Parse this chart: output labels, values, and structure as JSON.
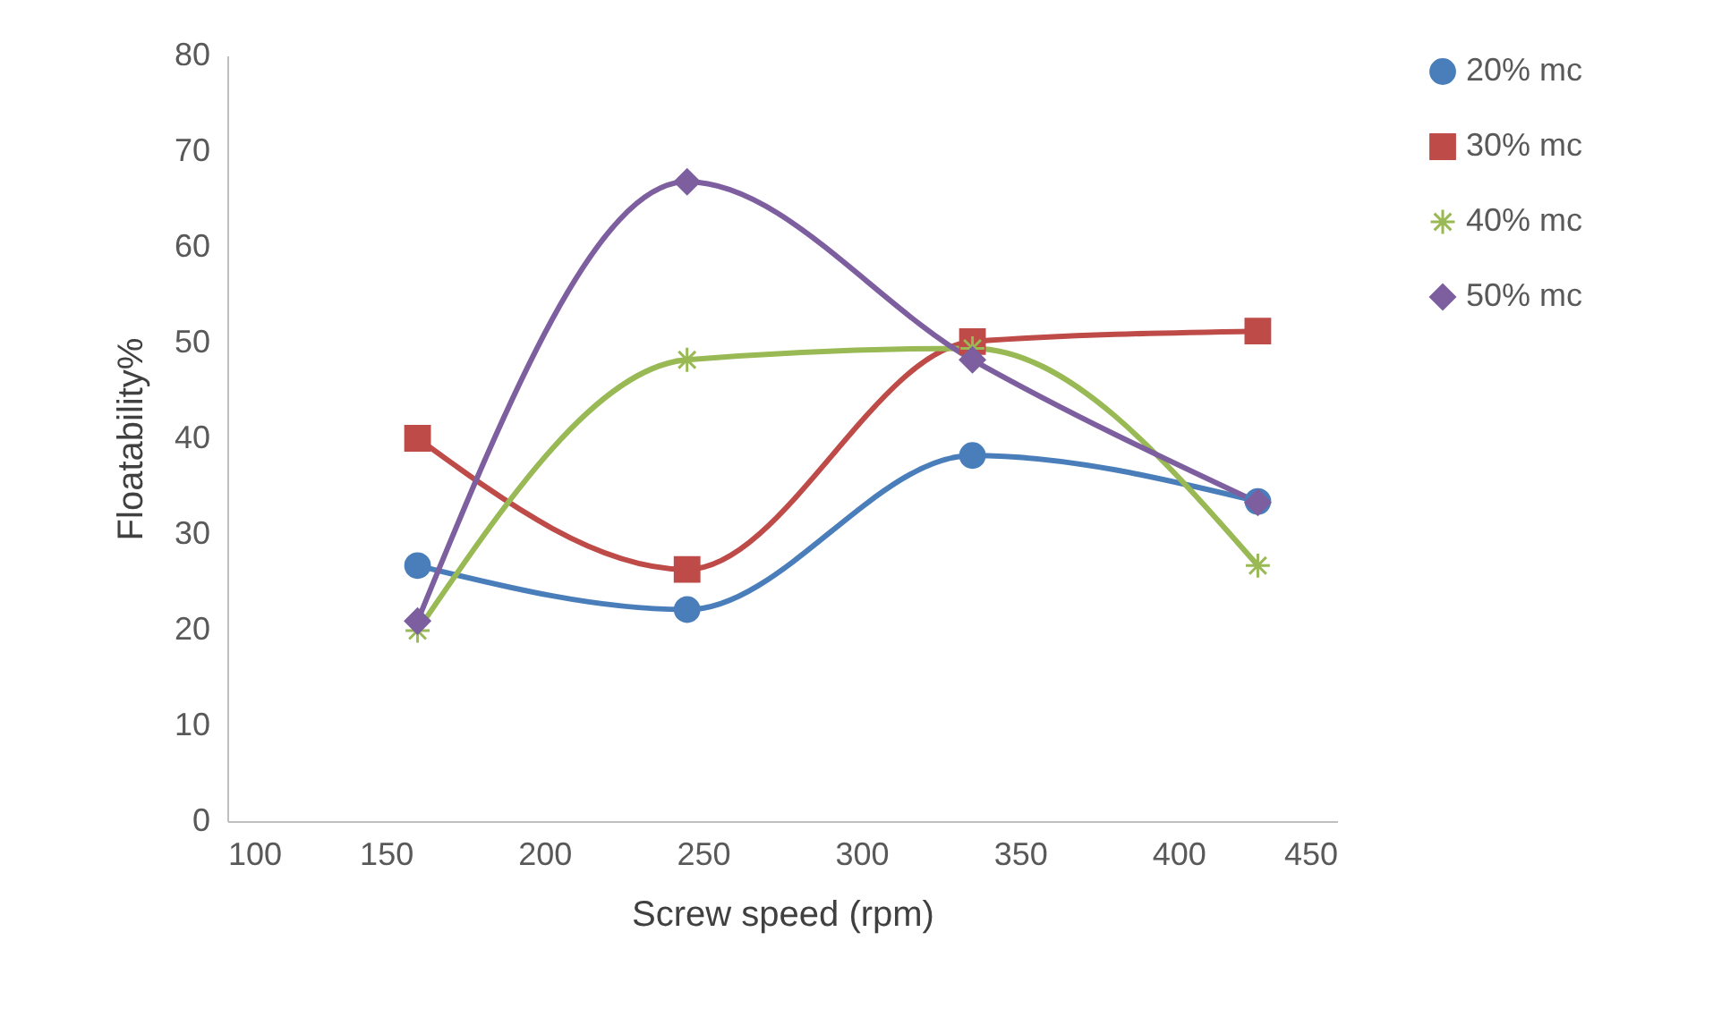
{
  "chart_data": {
    "type": "line",
    "xlabel": "Screw speed (rpm)",
    "ylabel": "Floatability%",
    "x": [
      160,
      245,
      335,
      425
    ],
    "series": [
      {
        "name": "20% mc",
        "color": "#4a7ebb",
        "marker": "circle",
        "values": [
          26.7,
          22.1,
          38.2,
          33.4
        ]
      },
      {
        "name": "30% mc",
        "color": "#be4b48",
        "marker": "square",
        "values": [
          40.0,
          26.3,
          50.1,
          51.2
        ]
      },
      {
        "name": "40% mc",
        "color": "#98b954",
        "marker": "cross",
        "values": [
          19.9,
          48.2,
          49.4,
          26.7
        ]
      },
      {
        "name": "50% mc",
        "color": "#7d5fa0",
        "marker": "diamond",
        "values": [
          20.9,
          66.8,
          48.2,
          33.3
        ]
      }
    ],
    "xlim": [
      100,
      450
    ],
    "xticks": [
      100,
      150,
      200,
      250,
      300,
      350,
      400,
      450
    ],
    "ylim": [
      0,
      80
    ],
    "yticks": [
      0,
      10,
      20,
      30,
      40,
      50,
      60,
      70,
      80
    ],
    "grid": false,
    "legend": "right"
  }
}
